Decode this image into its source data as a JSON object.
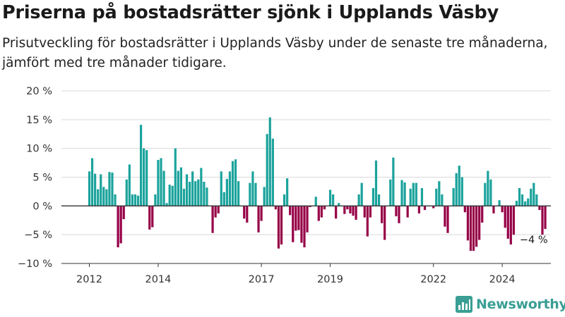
{
  "title": "Priserna på bostadsrätter sjönk i Upplands Väsby",
  "subtitle": "Prisutveckling för bostadsrätter i Upplands Väsby under de senaste tre månaderna, jämfört med tre månader tidigare.",
  "brand": {
    "name": "Newsworthy",
    "icon": "newsworthy-chart-logo-icon"
  },
  "colors": {
    "positive": "#1ba39c",
    "negative": "#960046",
    "grid": "#d9d9d9",
    "axis": "#333333",
    "text": "#333333"
  },
  "chart_data": {
    "type": "bar",
    "title": "Priserna på bostadsrätter sjönk i Upplands Väsby",
    "xlabel": "",
    "ylabel": "",
    "x_start": "2012-01",
    "x_interval": "month",
    "ylim": [
      -10,
      20
    ],
    "yticks": [
      -10,
      -5,
      0,
      5,
      10,
      15,
      20
    ],
    "ytick_labels": [
      "−10 %",
      "−5 %",
      "0 %",
      "5 %",
      "10 %",
      "15 %",
      "20 %"
    ],
    "xtick_labels": [
      {
        "label": "2012",
        "date": "2012-01"
      },
      {
        "label": "2014",
        "date": "2014-01"
      },
      {
        "label": "2017",
        "date": "2017-01"
      },
      {
        "label": "2019",
        "date": "2019-01"
      },
      {
        "label": "2022",
        "date": "2022-01"
      },
      {
        "label": "2024",
        "date": "2024-01"
      }
    ],
    "grid": true,
    "annotation": {
      "label": "−4 %",
      "date": "2024-12",
      "value": -4
    },
    "values": [
      6.0,
      8.3,
      5.6,
      2.9,
      5.5,
      3.3,
      2.9,
      5.9,
      5.8,
      2.0,
      -7.2,
      -6.5,
      -2.3,
      4.6,
      7.2,
      2.0,
      2.0,
      1.8,
      14.1,
      10.0,
      9.7,
      -4.1,
      -3.7,
      2.0,
      8.0,
      8.3,
      6.1,
      0.5,
      3.7,
      3.5,
      10.0,
      6.1,
      6.7,
      3.0,
      5.5,
      4.2,
      6.0,
      4.3,
      4.6,
      6.6,
      4.2,
      3.2,
      0.0,
      -4.7,
      -2.0,
      -1.3,
      6.0,
      2.4,
      4.7,
      6.0,
      7.8,
      8.1,
      4.3,
      0.0,
      -2.2,
      -2.9,
      4.0,
      6.0,
      4.0,
      -4.6,
      -2.6,
      3.3,
      12.5,
      15.4,
      11.7,
      -0.6,
      -7.4,
      -6.7,
      2.0,
      4.8,
      -1.6,
      -6.3,
      -4.3,
      -4.2,
      -6.4,
      -7.2,
      -4.6,
      -0.2,
      0.0,
      1.6,
      -2.6,
      -2.0,
      -0.6,
      0.0,
      2.8,
      2.0,
      -2.2,
      0.5,
      0.0,
      -1.4,
      -0.6,
      -1.3,
      -1.7,
      -2.4,
      2.0,
      4.0,
      -2.0,
      -5.3,
      -2.0,
      3.1,
      7.9,
      2.0,
      -3.0,
      -5.9,
      0.0,
      4.6,
      8.4,
      -1.8,
      -3.0,
      4.5,
      4.1,
      -2.0,
      3.0,
      4.0,
      4.0,
      -1.3,
      3.1,
      -0.7,
      0.0,
      0.0,
      -0.4,
      3.0,
      4.3,
      2.0,
      -3.6,
      -4.7,
      0.0,
      3.1,
      5.7,
      7.0,
      5.0,
      -1.1,
      -6.0,
      -7.8,
      -7.8,
      -7.1,
      -5.9,
      -2.9,
      4.0,
      6.1,
      4.6,
      -1.3,
      0.0,
      1.0,
      -1.1,
      -3.8,
      -5.7,
      -6.7,
      -5.0,
      0.9,
      3.1,
      2.0,
      0.8,
      1.3,
      3.0,
      4.0,
      2.0,
      -0.7,
      -5.0,
      -4.0
    ]
  }
}
